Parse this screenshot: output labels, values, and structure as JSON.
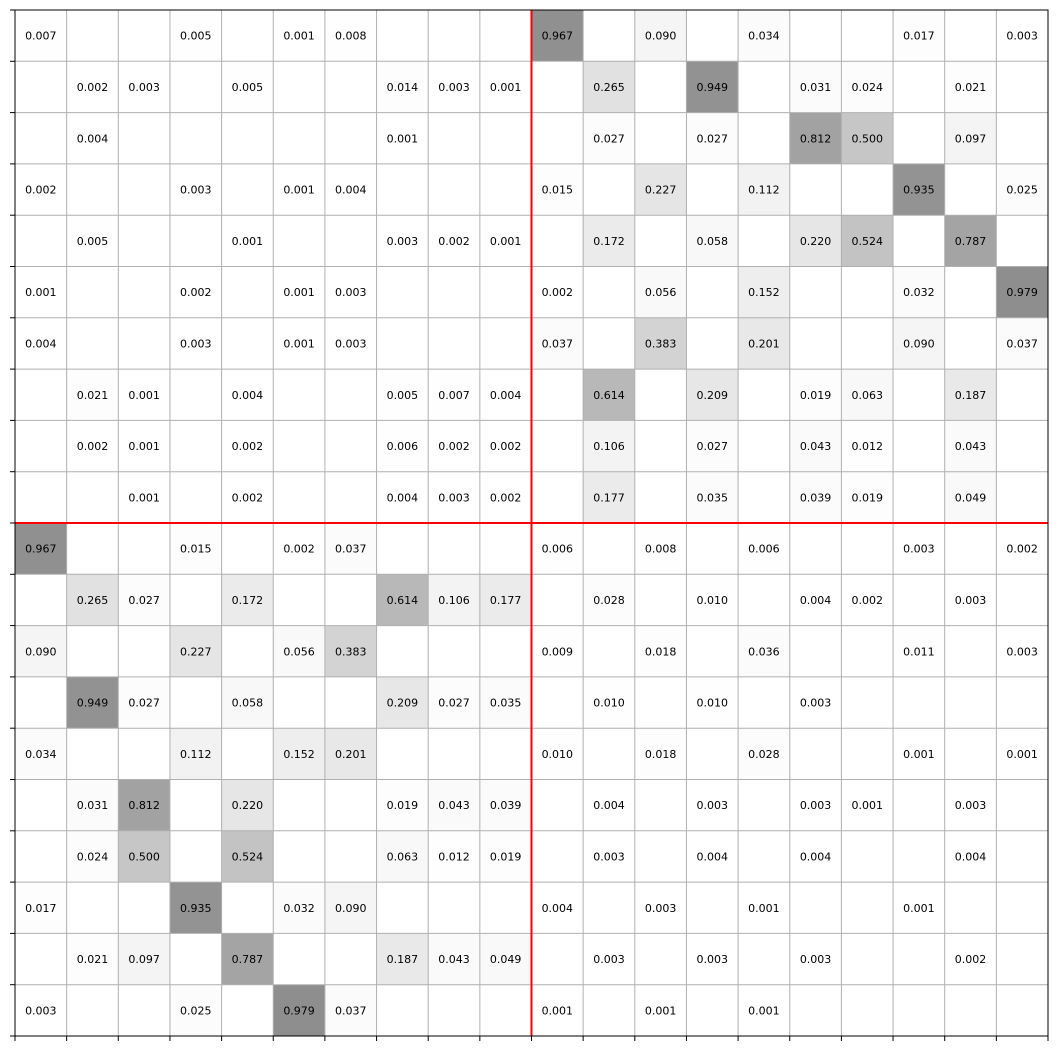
{
  "chart_data": {
    "type": "heatmap",
    "title": "",
    "xlabel": "",
    "ylabel": "",
    "rows": 20,
    "cols": 20,
    "value_format": "3 decimals; blank cells are empty",
    "colormap": {
      "low": "#ffffff",
      "high": "#8c8c8c",
      "max_value": 1.0
    },
    "divider_color": "#ff0000",
    "divider_after_row": 10,
    "divider_after_col": 10,
    "grid": true,
    "matrix": [
      [
        0.007,
        null,
        null,
        0.005,
        null,
        0.001,
        0.008,
        null,
        null,
        null,
        0.967,
        null,
        0.09,
        null,
        0.034,
        null,
        null,
        0.017,
        null,
        0.003
      ],
      [
        null,
        0.002,
        0.003,
        null,
        0.005,
        null,
        null,
        0.014,
        0.003,
        0.001,
        null,
        0.265,
        null,
        0.949,
        null,
        0.031,
        0.024,
        null,
        0.021,
        null
      ],
      [
        null,
        0.004,
        null,
        null,
        null,
        null,
        null,
        0.001,
        null,
        null,
        null,
        0.027,
        null,
        0.027,
        null,
        0.812,
        0.5,
        null,
        0.097,
        null
      ],
      [
        0.002,
        null,
        null,
        0.003,
        null,
        0.001,
        0.004,
        null,
        null,
        null,
        0.015,
        null,
        0.227,
        null,
        0.112,
        null,
        null,
        0.935,
        null,
        0.025
      ],
      [
        null,
        0.005,
        null,
        null,
        0.001,
        null,
        null,
        0.003,
        0.002,
        0.001,
        null,
        0.172,
        null,
        0.058,
        null,
        0.22,
        0.524,
        null,
        0.787,
        null
      ],
      [
        0.001,
        null,
        null,
        0.002,
        null,
        0.001,
        0.003,
        null,
        null,
        null,
        0.002,
        null,
        0.056,
        null,
        0.152,
        null,
        null,
        0.032,
        null,
        0.979
      ],
      [
        0.004,
        null,
        null,
        0.003,
        null,
        0.001,
        0.003,
        null,
        null,
        null,
        0.037,
        null,
        0.383,
        null,
        0.201,
        null,
        null,
        0.09,
        null,
        0.037
      ],
      [
        null,
        0.021,
        0.001,
        null,
        0.004,
        null,
        null,
        0.005,
        0.007,
        0.004,
        null,
        0.614,
        null,
        0.209,
        null,
        0.019,
        0.063,
        null,
        0.187,
        null
      ],
      [
        null,
        0.002,
        0.001,
        null,
        0.002,
        null,
        null,
        0.006,
        0.002,
        0.002,
        null,
        0.106,
        null,
        0.027,
        null,
        0.043,
        0.012,
        null,
        0.043,
        null
      ],
      [
        null,
        null,
        0.001,
        null,
        0.002,
        null,
        null,
        0.004,
        0.003,
        0.002,
        null,
        0.177,
        null,
        0.035,
        null,
        0.039,
        0.019,
        null,
        0.049,
        null
      ],
      [
        0.967,
        null,
        null,
        0.015,
        null,
        0.002,
        0.037,
        null,
        null,
        null,
        0.006,
        null,
        0.008,
        null,
        0.006,
        null,
        null,
        0.003,
        null,
        0.002
      ],
      [
        null,
        0.265,
        0.027,
        null,
        0.172,
        null,
        null,
        0.614,
        0.106,
        0.177,
        null,
        0.028,
        null,
        0.01,
        null,
        0.004,
        0.002,
        null,
        0.003,
        null
      ],
      [
        0.09,
        null,
        null,
        0.227,
        null,
        0.056,
        0.383,
        null,
        null,
        null,
        0.009,
        null,
        0.018,
        null,
        0.036,
        null,
        null,
        0.011,
        null,
        0.003
      ],
      [
        null,
        0.949,
        0.027,
        null,
        0.058,
        null,
        null,
        0.209,
        0.027,
        0.035,
        null,
        0.01,
        null,
        0.01,
        null,
        0.003,
        null,
        null,
        null,
        null
      ],
      [
        0.034,
        null,
        null,
        0.112,
        null,
        0.152,
        0.201,
        null,
        null,
        null,
        0.01,
        null,
        0.018,
        null,
        0.028,
        null,
        null,
        0.001,
        null,
        0.001
      ],
      [
        null,
        0.031,
        0.812,
        null,
        0.22,
        null,
        null,
        0.019,
        0.043,
        0.039,
        null,
        0.004,
        null,
        0.003,
        null,
        0.003,
        0.001,
        null,
        0.003,
        null
      ],
      [
        null,
        0.024,
        0.5,
        null,
        0.524,
        null,
        null,
        0.063,
        0.012,
        0.019,
        null,
        0.003,
        null,
        0.004,
        null,
        0.004,
        null,
        null,
        0.004,
        null
      ],
      [
        0.017,
        null,
        null,
        0.935,
        null,
        0.032,
        0.09,
        null,
        null,
        null,
        0.004,
        null,
        0.003,
        null,
        0.001,
        null,
        null,
        0.001,
        null,
        null
      ],
      [
        null,
        0.021,
        0.097,
        null,
        0.787,
        null,
        null,
        0.187,
        0.043,
        0.049,
        null,
        0.003,
        null,
        0.003,
        null,
        0.003,
        null,
        null,
        0.002,
        null
      ],
      [
        0.003,
        null,
        null,
        0.025,
        null,
        0.979,
        0.037,
        null,
        null,
        null,
        0.001,
        null,
        0.001,
        null,
        0.001,
        null,
        null,
        null,
        null,
        null
      ]
    ]
  }
}
